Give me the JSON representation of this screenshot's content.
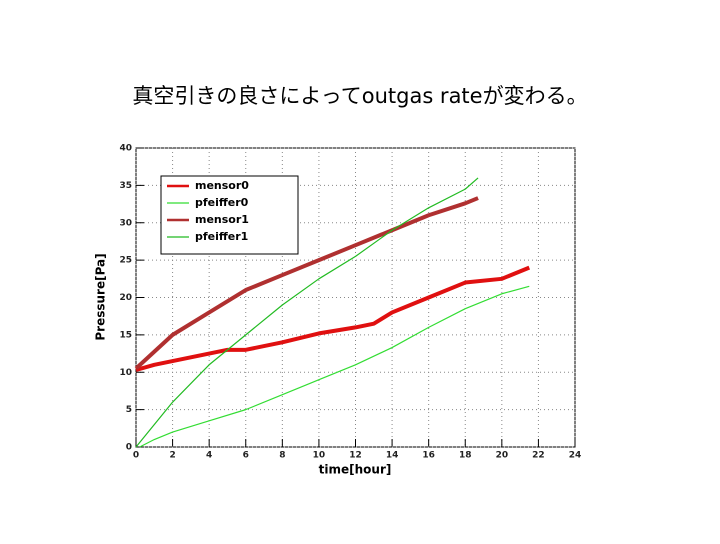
{
  "chart_data": {
    "type": "line",
    "title": "真空引きの良さによってoutgas rateが変わる。",
    "x_label": "time[hour]",
    "y_label": "Pressure[Pa]",
    "xlim": [
      0,
      24
    ],
    "xticks": [
      0,
      2,
      4,
      6,
      8,
      10,
      12,
      14,
      16,
      18,
      20,
      22,
      24
    ],
    "ylim": [
      0,
      40
    ],
    "yticks": [
      0,
      5,
      10,
      15,
      20,
      25,
      30,
      35,
      40
    ],
    "grid": true,
    "legend": "upper left",
    "series": [
      {
        "name": "mensor0",
        "color": "#e01010",
        "width": 4,
        "x": [
          0,
          1,
          3,
          5,
          6,
          8,
          10,
          12,
          13,
          14,
          16,
          18,
          20,
          21.5
        ],
        "values": [
          10.3,
          11,
          12,
          13,
          13,
          14,
          15.2,
          16,
          16.5,
          18,
          20,
          22,
          22.5,
          24
        ]
      },
      {
        "name": "pfeiffer0",
        "color": "#33dd33",
        "width": 1.2,
        "x": [
          0.2,
          1,
          2,
          4,
          6,
          8,
          10,
          12,
          14,
          16,
          18,
          20,
          21.5
        ],
        "values": [
          0,
          1,
          2,
          3.5,
          5,
          7,
          9,
          11,
          13.3,
          16,
          18.5,
          20.5,
          21.5
        ]
      },
      {
        "name": "mensor1",
        "color": "#b03030",
        "width": 4,
        "x": [
          0,
          2,
          4,
          6,
          8,
          10,
          12,
          14,
          16,
          18,
          18.7
        ],
        "values": [
          10.5,
          15,
          18,
          21,
          23,
          25,
          27,
          29,
          31,
          32.6,
          33.3
        ]
      },
      {
        "name": "pfeiffer1",
        "color": "#22bb22",
        "width": 1.2,
        "x": [
          0,
          2,
          4,
          6,
          8,
          10,
          12,
          14,
          16,
          18,
          18.7
        ],
        "values": [
          0,
          6,
          11,
          15,
          19,
          22.5,
          25.5,
          29,
          32,
          34.5,
          36
        ]
      }
    ]
  }
}
